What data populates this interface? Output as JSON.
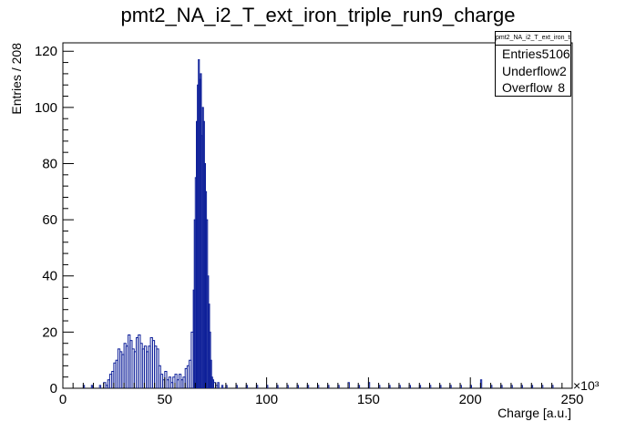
{
  "chart_data": {
    "type": "histogram",
    "title": "pmt2_NA_i2_T_ext_iron_triple_run9_charge",
    "xlabel": "Charge [a.u.]",
    "ylabel": "Entries / 208",
    "x_exponent_label": "×10³",
    "xlim": [
      0,
      250
    ],
    "ylim": [
      0,
      123
    ],
    "x_unit_scale": 1000,
    "bin_width": 0.208,
    "x_ticks": [
      0,
      50,
      100,
      150,
      200,
      250
    ],
    "y_ticks": [
      0,
      20,
      40,
      60,
      80,
      100,
      120
    ],
    "line_color": "#0d1f99",
    "grid": false,
    "series": [
      {
        "x": [
          10,
          14,
          18,
          20,
          21,
          22,
          23,
          24,
          25,
          26,
          27,
          28,
          29,
          30,
          31,
          32,
          33,
          34,
          35,
          36,
          37,
          38,
          39,
          40,
          41,
          42,
          43,
          44,
          45,
          46,
          47,
          48,
          49,
          50,
          51,
          52,
          53,
          54,
          55,
          56,
          57,
          58,
          59,
          60,
          61,
          62,
          63,
          64,
          64.5,
          65,
          65.5,
          66,
          66.5,
          67,
          67.5,
          68,
          68.5,
          69,
          69.5,
          70,
          70.5,
          71,
          71.5,
          72,
          72.5,
          73,
          73.5,
          74,
          75,
          76,
          78,
          80,
          85,
          90,
          95,
          100,
          105,
          110,
          115,
          120,
          125,
          130,
          135,
          140,
          145,
          150,
          155,
          160,
          165,
          170,
          175,
          180,
          185,
          190,
          195,
          200,
          205,
          210,
          215,
          220,
          225,
          230,
          235,
          240,
          245
        ],
        "y": [
          1,
          1,
          1,
          2,
          1,
          3,
          5,
          6,
          9,
          10,
          14,
          13,
          12,
          16,
          15,
          19,
          17,
          14,
          13,
          18,
          19,
          16,
          14,
          15,
          13,
          15,
          18,
          17,
          15,
          14,
          8,
          5,
          3,
          6,
          3,
          4,
          2,
          4,
          5,
          3,
          5,
          3,
          4,
          7,
          8,
          10,
          20,
          35,
          60,
          75,
          95,
          108,
          117,
          110,
          112,
          90,
          100,
          95,
          80,
          70,
          60,
          40,
          30,
          20,
          10,
          4,
          3,
          2,
          1,
          2,
          1,
          1,
          1,
          1,
          1,
          1,
          1,
          1,
          1,
          1,
          1,
          1,
          1,
          2,
          1,
          2,
          1,
          1,
          1,
          1,
          1,
          1,
          1,
          1,
          1,
          1,
          3,
          1,
          1,
          1,
          1,
          1,
          1,
          1
        ]
      }
    ]
  },
  "stats": {
    "header": "pmt2_NA_i2_T_ext_iron_triple_run9_charge",
    "rows": [
      {
        "label": "Entries",
        "value": "5106"
      },
      {
        "label": "Underflow",
        "value": "2"
      },
      {
        "label": "Overflow",
        "value": "8"
      }
    ]
  }
}
